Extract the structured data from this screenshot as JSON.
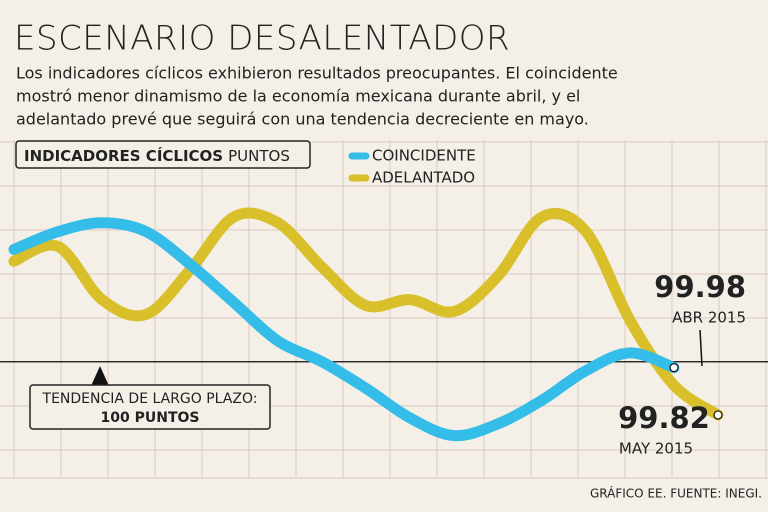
{
  "chart_data": {
    "type": "line",
    "title": "ESCENARIO DESALENTADOR",
    "subtitle": [
      "Los indicadores cíclicos exhibieron resultados preocupantes. El coincidente",
      "mostró menor dinamismo de la economía mexicana durante abril, y el",
      "adelantado prevé que seguirá con una tendencia decreciente en mayo."
    ],
    "chart_label": "INDICADORES CÍCLICOS",
    "unit_label": "PUNTOS",
    "categories": [
      null,
      null,
      null,
      null,
      null,
      null,
      null,
      null,
      null,
      null,
      null,
      null,
      null,
      null,
      null,
      null,
      null
    ],
    "series": [
      {
        "name": "COINCIDENTE",
        "color": "#35bde9",
        "values": [
          100.38,
          100.44,
          100.47,
          100.44,
          100.33,
          100.2,
          100.07,
          100.0,
          99.91,
          99.81,
          99.75,
          99.79,
          99.87,
          99.97,
          100.03,
          99.98,
          null
        ]
      },
      {
        "name": "ADELANTADO",
        "color": "#d9bf2a",
        "values": [
          100.34,
          100.39,
          100.21,
          100.16,
          100.31,
          100.49,
          100.47,
          100.32,
          100.19,
          100.21,
          100.17,
          100.29,
          100.49,
          100.44,
          100.14,
          99.92,
          99.82
        ]
      }
    ],
    "ylim": [
      99.6,
      100.75
    ],
    "reference_value": 100,
    "reference_label": [
      "TENDENCIA DE LARGO PLAZO:",
      "100 PUNTOS"
    ],
    "point_labels": [
      {
        "value": "chart_data.series.0.values.15",
        "date": "ABR 2015"
      },
      {
        "value": "chart_data.series.1.values.16",
        "date": "MAY 2015"
      }
    ],
    "source": "GRÁFICO EE. FUENTE: INEGI."
  }
}
